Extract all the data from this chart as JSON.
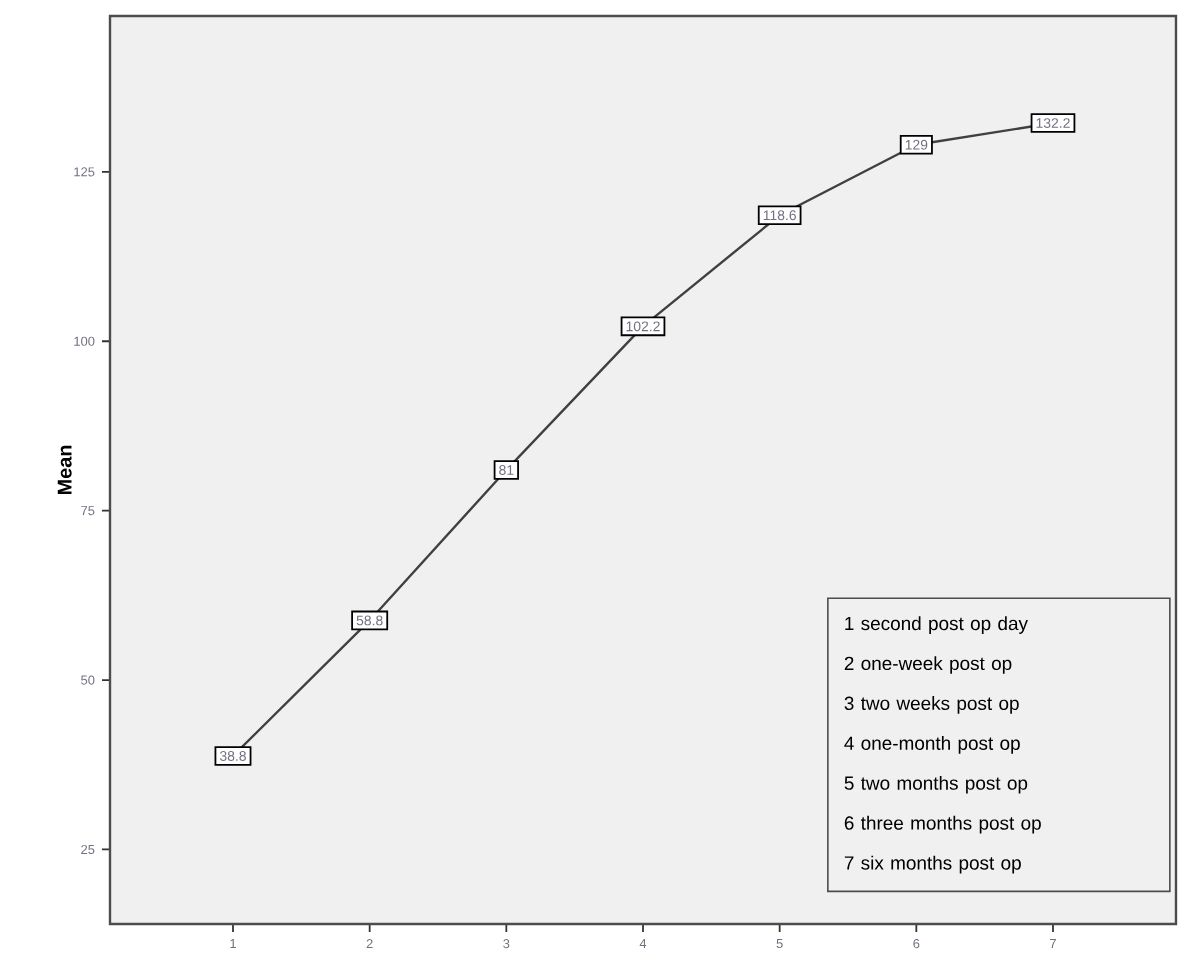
{
  "chart_data": {
    "type": "line",
    "ylabel": "Mean",
    "x": [
      1,
      2,
      3,
      4,
      5,
      6,
      7
    ],
    "values": [
      38.8,
      58.8,
      81,
      102.2,
      118.6,
      129,
      132.2
    ],
    "color": "#404040",
    "data_labels": true,
    "line_style": "solid",
    "marker": "square",
    "xlim": [
      0.1,
      7.9
    ],
    "ylim": [
      14,
      148
    ],
    "xticks": [
      1,
      2,
      3,
      4,
      5,
      6,
      7
    ],
    "yticks": [
      25,
      50,
      75,
      100,
      125
    ],
    "annotations": [
      "1 second post op day",
      "2 one-week post op",
      "3 two weeks post op",
      "4 one-month post op",
      "5 two months post op",
      "6 three months post op",
      "7 six months post op"
    ]
  }
}
